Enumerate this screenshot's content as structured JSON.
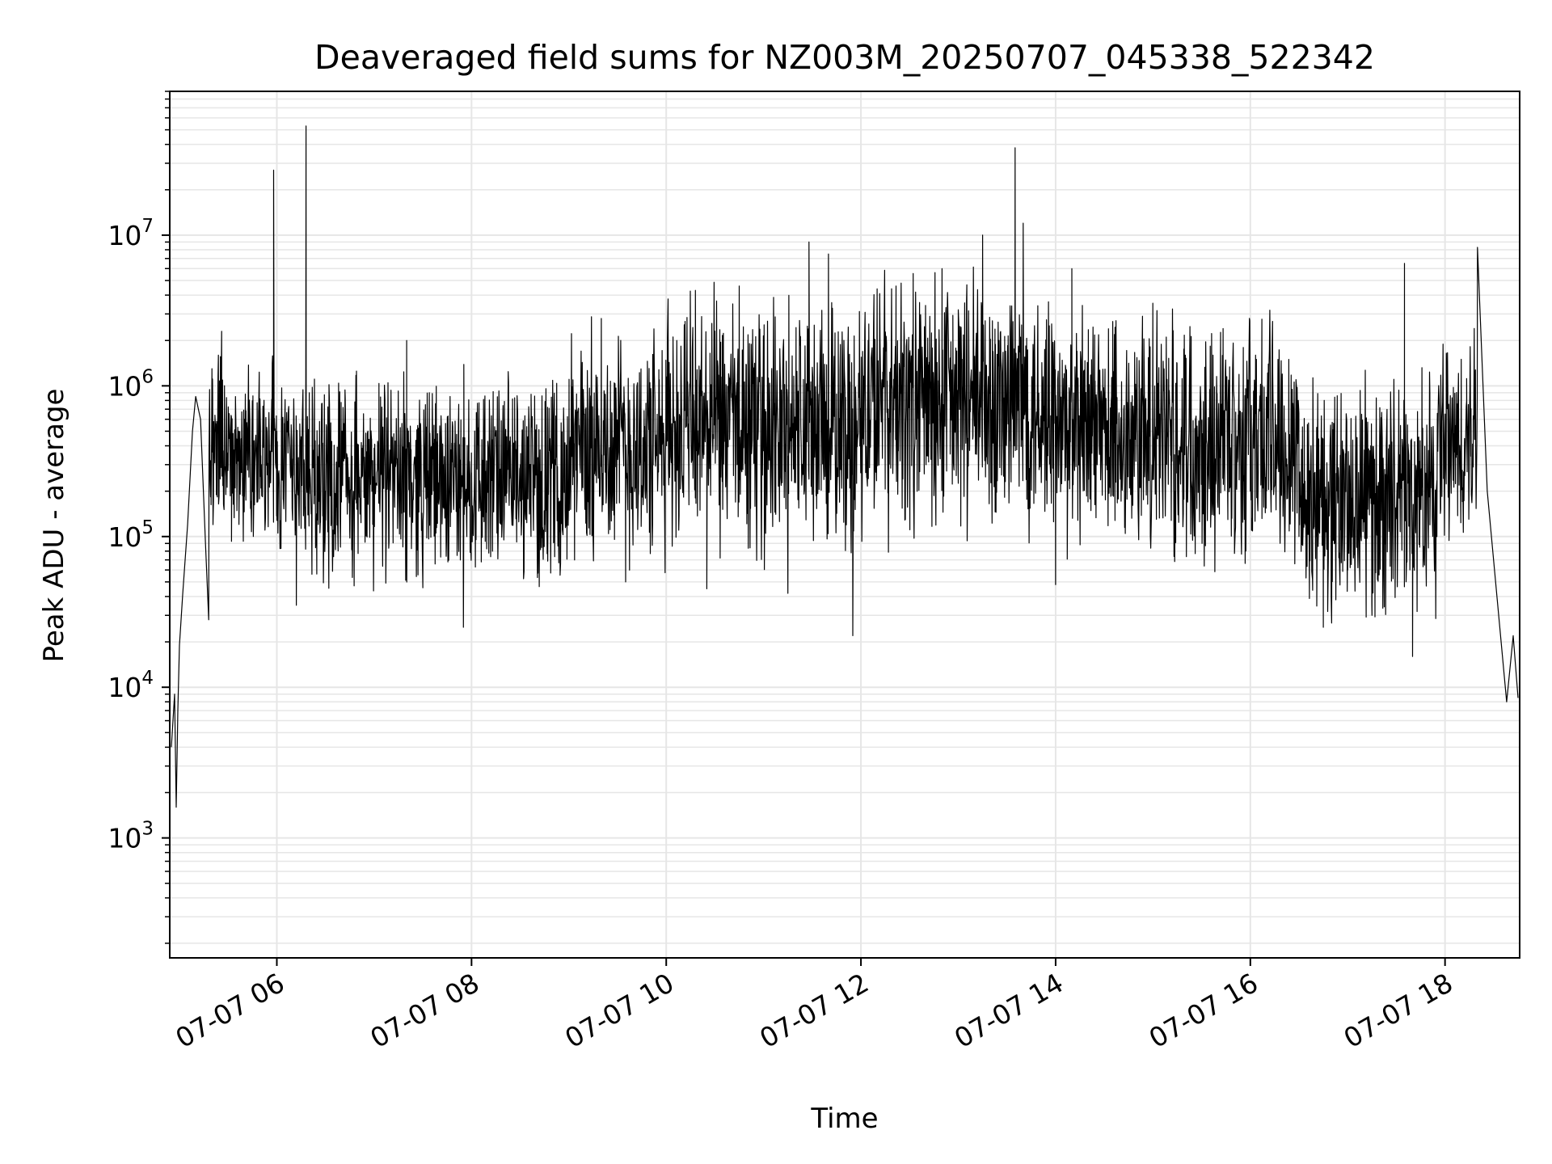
{
  "chart_data": {
    "type": "line",
    "title": "Deaveraged field sums for NZ003M_20250707_045338_522342",
    "xlabel": "Time",
    "ylabel": "Peak ADU - average",
    "yscale": "log",
    "ylim": [
      160,
      90000000
    ],
    "xlim": [
      "2025-07-07 04:54",
      "2025-07-07 18:46"
    ],
    "grid": true,
    "legend": "none",
    "line_color": "#000000",
    "grid_color": "#e6e6e6",
    "x_ticks": [
      {
        "t": "2025-07-07 06:00",
        "label": "07-07 06"
      },
      {
        "t": "2025-07-07 08:00",
        "label": "07-07 08"
      },
      {
        "t": "2025-07-07 10:00",
        "label": "07-07 10"
      },
      {
        "t": "2025-07-07 12:00",
        "label": "07-07 12"
      },
      {
        "t": "2025-07-07 14:00",
        "label": "07-07 14"
      },
      {
        "t": "2025-07-07 16:00",
        "label": "07-07 16"
      },
      {
        "t": "2025-07-07 18:00",
        "label": "07-07 18"
      }
    ],
    "y_ticks": [
      {
        "value": 1000,
        "base": "10",
        "exp": "3"
      },
      {
        "value": 10000,
        "base": "10",
        "exp": "4"
      },
      {
        "value": 100000,
        "base": "10",
        "exp": "5"
      },
      {
        "value": 1000000,
        "base": "10",
        "exp": "6"
      },
      {
        "value": 10000000,
        "base": "10",
        "exp": "7"
      }
    ],
    "series": [
      {
        "points": [
          [
            "2025-07-07 04:55",
            4000
          ],
          [
            "2025-07-07 04:57",
            9000
          ],
          [
            "2025-07-07 04:58",
            1600
          ],
          [
            "2025-07-07 04:59",
            7000
          ],
          [
            "2025-07-07 05:00",
            19000
          ],
          [
            "2025-07-07 05:02",
            42000
          ],
          [
            "2025-07-07 05:05",
            120000
          ],
          [
            "2025-07-07 05:08",
            500000
          ],
          [
            "2025-07-07 05:10",
            850000
          ],
          [
            "2025-07-07 05:13",
            600000
          ],
          [
            "2025-07-07 05:16",
            90000
          ],
          [
            "2025-07-07 05:18",
            28000
          ],
          [
            "2025-07-07 05:20",
            1300000
          ],
          [
            "2025-07-07 05:24",
            1600000
          ],
          [
            "2025-07-07 05:26",
            2300000
          ],
          [
            "2025-07-07 05:30",
            300000
          ],
          [
            "2025-07-07 05:40",
            600000
          ],
          [
            "2025-07-07 05:50",
            250000
          ],
          [
            "2025-07-07 05:58",
            27000000
          ],
          [
            "2025-07-07 06:00",
            500000
          ],
          [
            "2025-07-07 06:10",
            300000
          ],
          [
            "2025-07-07 06:12",
            35000
          ],
          [
            "2025-07-07 06:18",
            53000000
          ],
          [
            "2025-07-07 06:20",
            900000
          ],
          [
            "2025-07-07 06:30",
            200000
          ],
          [
            "2025-07-07 06:55",
            120000
          ],
          [
            "2025-07-07 07:20",
            2000000
          ],
          [
            "2025-07-07 07:55",
            25000
          ],
          [
            "2025-07-07 08:00",
            200000
          ],
          [
            "2025-07-07 08:30",
            300000
          ],
          [
            "2025-07-07 09:00",
            400000
          ],
          [
            "2025-07-07 09:20",
            2800000
          ],
          [
            "2025-07-07 09:35",
            50000
          ],
          [
            "2025-07-07 10:00",
            700000
          ],
          [
            "2025-07-07 10:18",
            4300000
          ],
          [
            "2025-07-07 10:25",
            45000
          ],
          [
            "2025-07-07 10:45",
            4600000
          ],
          [
            "2025-07-07 11:00",
            800000
          ],
          [
            "2025-07-07 11:15",
            42000
          ],
          [
            "2025-07-07 11:28",
            9000000
          ],
          [
            "2025-07-07 11:40",
            7500000
          ],
          [
            "2025-07-07 11:55",
            22000
          ],
          [
            "2025-07-07 12:10",
            4400000
          ],
          [
            "2025-07-07 12:30",
            300000
          ],
          [
            "2025-07-07 12:50",
            6000000
          ],
          [
            "2025-07-07 13:15",
            10000000
          ],
          [
            "2025-07-07 13:35",
            38000000
          ],
          [
            "2025-07-07 13:40",
            12000000
          ],
          [
            "2025-07-07 13:50",
            400000
          ],
          [
            "2025-07-07 14:00",
            48000
          ],
          [
            "2025-07-07 14:10",
            6000000
          ],
          [
            "2025-07-07 14:30",
            800000
          ],
          [
            "2025-07-07 15:00",
            500000
          ],
          [
            "2025-07-07 15:30",
            300000
          ],
          [
            "2025-07-07 16:00",
            200000
          ],
          [
            "2025-07-07 16:30",
            100000
          ],
          [
            "2025-07-07 16:45",
            25000
          ],
          [
            "2025-07-07 17:00",
            60000
          ],
          [
            "2025-07-07 17:15",
            30000
          ],
          [
            "2025-07-07 17:35",
            6500000
          ],
          [
            "2025-07-07 17:40",
            16000
          ],
          [
            "2025-07-07 17:55",
            100000
          ],
          [
            "2025-07-07 18:10",
            1500000
          ],
          [
            "2025-07-07 18:18",
            2400000
          ],
          [
            "2025-07-07 18:20",
            8300000
          ],
          [
            "2025-07-07 18:26",
            200000
          ],
          [
            "2025-07-07 18:32",
            40000
          ],
          [
            "2025-07-07 18:38",
            8000
          ],
          [
            "2025-07-07 18:42",
            22000
          ],
          [
            "2025-07-07 18:45",
            8500
          ]
        ],
        "noise": {
          "description": "dense high-frequency trace between labeled points",
          "segments": [
            [
              "2025-07-07 05:18",
              "2025-07-07 06:00",
              60000,
              1600000
            ],
            [
              "2025-07-07 06:00",
              "2025-07-07 09:00",
              35000,
              1200000
            ],
            [
              "2025-07-07 09:00",
              "2025-07-07 10:00",
              40000,
              2500000
            ],
            [
              "2025-07-07 10:00",
              "2025-07-07 12:00",
              45000,
              4000000
            ],
            [
              "2025-07-07 12:00",
              "2025-07-07 14:00",
              60000,
              6000000
            ],
            [
              "2025-07-07 14:00",
              "2025-07-07 16:30",
              40000,
              3500000
            ],
            [
              "2025-07-07 16:30",
              "2025-07-07 17:55",
              18000,
              1200000
            ],
            [
              "2025-07-07 17:55",
              "2025-07-07 18:20",
              50000,
              2000000
            ]
          ]
        }
      }
    ]
  }
}
